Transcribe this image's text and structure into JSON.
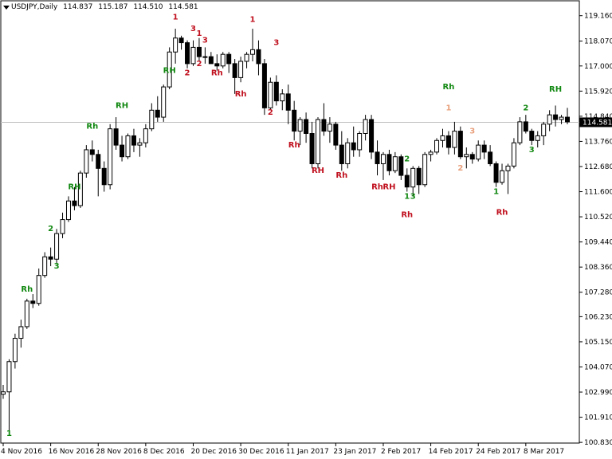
{
  "chart_data": {
    "type": "candlestick",
    "title": "USDJPY,Daily",
    "ohlc_header": [
      "114.837",
      "115.187",
      "114.510",
      "114.581"
    ],
    "current_price": 114.581,
    "current_price_label": "114.581",
    "ylim": [
      100.8,
      119.8
    ],
    "y_ticks": [
      "119.160",
      "118.070",
      "117.000",
      "115.920",
      "114.840",
      "113.760",
      "112.680",
      "111.600",
      "110.520",
      "109.440",
      "108.360",
      "107.280",
      "106.230",
      "105.150",
      "104.070",
      "102.990",
      "101.910",
      "100.830"
    ],
    "x_ticks": [
      {
        "i": 0,
        "label": "4 Nov 2016"
      },
      {
        "i": 8,
        "label": "16 Nov 2016"
      },
      {
        "i": 16,
        "label": "28 Nov 2016"
      },
      {
        "i": 24,
        "label": "8 Dec 2016"
      },
      {
        "i": 32,
        "label": "20 Dec 2016"
      },
      {
        "i": 40,
        "label": "30 Dec 2016"
      },
      {
        "i": 48,
        "label": "11 Jan 2017"
      },
      {
        "i": 56,
        "label": "23 Jan 2017"
      },
      {
        "i": 64,
        "label": "2 Feb 2017"
      },
      {
        "i": 72,
        "label": "14 Feb 2017"
      },
      {
        "i": 80,
        "label": "24 Feb 2017"
      },
      {
        "i": 88,
        "label": "8 Mar 2017"
      }
    ],
    "colors": {
      "green": "#118811",
      "red": "#c0101e",
      "tan": "#e8a07c",
      "text": "#000000",
      "priceline": "#c0c0c0"
    },
    "candles": [
      [
        102.9,
        103.3,
        102.7,
        103.0
      ],
      [
        103.0,
        104.4,
        101.2,
        104.3
      ],
      [
        104.3,
        105.5,
        104.0,
        105.3
      ],
      [
        105.3,
        106.1,
        104.9,
        105.8
      ],
      [
        105.8,
        107.0,
        105.7,
        106.9
      ],
      [
        106.9,
        107.2,
        106.6,
        106.8
      ],
      [
        106.8,
        108.3,
        106.7,
        108.0
      ],
      [
        108.0,
        109.0,
        107.9,
        108.8
      ],
      [
        108.8,
        109.2,
        108.4,
        108.7
      ],
      [
        108.7,
        110.0,
        108.5,
        109.8
      ],
      [
        109.8,
        110.7,
        109.6,
        110.4
      ],
      [
        110.4,
        111.4,
        110.3,
        111.2
      ],
      [
        111.2,
        111.8,
        110.8,
        111.0
      ],
      [
        111.0,
        112.5,
        110.9,
        112.4
      ],
      [
        112.4,
        113.6,
        112.2,
        113.4
      ],
      [
        113.4,
        113.8,
        112.9,
        113.2
      ],
      [
        113.2,
        113.4,
        111.4,
        112.6
      ],
      [
        112.6,
        112.9,
        111.6,
        111.9
      ],
      [
        111.9,
        114.5,
        111.7,
        114.3
      ],
      [
        114.3,
        114.8,
        113.4,
        113.6
      ],
      [
        113.6,
        114.0,
        112.9,
        113.1
      ],
      [
        113.1,
        114.1,
        113.0,
        114.0
      ],
      [
        114.0,
        114.3,
        113.3,
        113.6
      ],
      [
        113.6,
        113.9,
        113.1,
        113.7
      ],
      [
        113.7,
        114.5,
        113.5,
        114.3
      ],
      [
        114.3,
        115.4,
        114.2,
        115.1
      ],
      [
        115.1,
        115.7,
        114.6,
        114.8
      ],
      [
        114.8,
        116.2,
        114.6,
        116.1
      ],
      [
        116.1,
        117.8,
        116.0,
        117.6
      ],
      [
        117.6,
        118.6,
        117.1,
        118.2
      ],
      [
        118.2,
        118.3,
        117.7,
        118.0
      ],
      [
        118.0,
        118.1,
        116.9,
        117.1
      ],
      [
        117.1,
        118.1,
        117.0,
        117.8
      ],
      [
        117.8,
        118.2,
        117.2,
        117.4
      ],
      [
        117.4,
        117.8,
        117.1,
        117.4
      ],
      [
        117.4,
        117.6,
        117.1,
        117.1
      ],
      [
        117.1,
        117.5,
        116.8,
        117.0
      ],
      [
        117.0,
        117.6,
        116.9,
        117.5
      ],
      [
        117.5,
        117.6,
        116.7,
        117.1
      ],
      [
        117.1,
        117.3,
        115.8,
        116.5
      ],
      [
        116.5,
        117.4,
        116.3,
        117.2
      ],
      [
        117.2,
        117.6,
        116.9,
        117.5
      ],
      [
        117.5,
        118.6,
        117.2,
        117.7
      ],
      [
        117.7,
        118.1,
        116.6,
        117.1
      ],
      [
        117.1,
        117.3,
        114.9,
        115.2
      ],
      [
        115.2,
        116.5,
        115.1,
        116.3
      ],
      [
        116.3,
        116.6,
        115.3,
        115.5
      ],
      [
        115.5,
        116.0,
        115.1,
        115.8
      ],
      [
        115.8,
        116.2,
        114.5,
        115.1
      ],
      [
        115.1,
        115.5,
        113.8,
        114.2
      ],
      [
        114.2,
        114.8,
        113.6,
        114.7
      ],
      [
        114.7,
        115.0,
        113.7,
        114.1
      ],
      [
        114.1,
        114.6,
        112.6,
        112.8
      ],
      [
        112.8,
        114.8,
        112.6,
        114.7
      ],
      [
        114.7,
        115.4,
        114.0,
        114.2
      ],
      [
        114.2,
        114.8,
        113.7,
        114.5
      ],
      [
        114.5,
        114.6,
        113.4,
        113.6
      ],
      [
        113.6,
        114.2,
        112.5,
        112.8
      ],
      [
        112.8,
        113.9,
        112.6,
        113.7
      ],
      [
        113.7,
        114.4,
        113.1,
        113.4
      ],
      [
        113.4,
        114.2,
        113.1,
        114.1
      ],
      [
        114.1,
        114.9,
        113.8,
        114.7
      ],
      [
        114.7,
        114.9,
        113.0,
        113.3
      ],
      [
        113.3,
        113.8,
        112.3,
        112.8
      ],
      [
        112.8,
        113.3,
        112.1,
        113.2
      ],
      [
        113.2,
        113.4,
        112.3,
        112.5
      ],
      [
        112.5,
        113.3,
        112.4,
        113.1
      ],
      [
        113.1,
        113.2,
        112.1,
        112.3
      ],
      [
        112.3,
        112.6,
        111.6,
        111.8
      ],
      [
        111.8,
        112.7,
        111.4,
        112.6
      ],
      [
        112.6,
        112.7,
        111.5,
        111.9
      ],
      [
        111.9,
        113.3,
        111.8,
        113.2
      ],
      [
        113.2,
        113.4,
        112.9,
        113.3
      ],
      [
        113.3,
        113.9,
        113.2,
        113.8
      ],
      [
        113.8,
        114.3,
        113.5,
        114.0
      ],
      [
        114.0,
        114.2,
        113.2,
        113.5
      ],
      [
        113.5,
        114.6,
        113.2,
        114.2
      ],
      [
        114.2,
        114.4,
        113.0,
        113.1
      ],
      [
        113.1,
        113.5,
        112.6,
        113.2
      ],
      [
        113.2,
        113.3,
        112.8,
        113.0
      ],
      [
        113.0,
        113.8,
        112.9,
        113.6
      ],
      [
        113.6,
        113.8,
        113.0,
        113.3
      ],
      [
        113.3,
        113.6,
        112.7,
        112.8
      ],
      [
        112.8,
        112.9,
        111.8,
        112.0
      ],
      [
        112.0,
        112.8,
        111.9,
        112.5
      ],
      [
        112.5,
        112.8,
        111.5,
        112.7
      ],
      [
        112.7,
        113.9,
        112.6,
        113.7
      ],
      [
        113.7,
        114.8,
        113.6,
        114.6
      ],
      [
        114.6,
        114.9,
        114.1,
        114.2
      ],
      [
        114.2,
        114.3,
        113.6,
        113.8
      ],
      [
        113.8,
        114.2,
        113.5,
        114.0
      ],
      [
        114.0,
        114.6,
        113.6,
        114.5
      ],
      [
        114.5,
        115.1,
        114.2,
        114.9
      ],
      [
        114.9,
        115.3,
        114.4,
        114.7
      ],
      [
        114.7,
        114.9,
        114.5,
        114.8
      ],
      [
        114.8,
        115.2,
        114.5,
        114.6
      ]
    ],
    "annotations": [
      {
        "i": 1,
        "y": 101.1,
        "text": "1",
        "color": "green",
        "pos": "below"
      },
      {
        "i": 4,
        "y": 107.3,
        "text": "Rh",
        "color": "green",
        "pos": "above"
      },
      {
        "i": 8,
        "y": 109.9,
        "text": "2",
        "color": "green",
        "pos": "above"
      },
      {
        "i": 9,
        "y": 108.3,
        "text": "3",
        "color": "green",
        "pos": "below"
      },
      {
        "i": 12,
        "y": 111.7,
        "text": "RH",
        "color": "green",
        "pos": "above"
      },
      {
        "i": 15,
        "y": 114.3,
        "text": "Rh",
        "color": "green",
        "pos": "above"
      },
      {
        "i": 20,
        "y": 115.2,
        "text": "RH",
        "color": "green",
        "pos": "above"
      },
      {
        "i": 28,
        "y": 116.7,
        "text": "RH",
        "color": "green",
        "pos": "above"
      },
      {
        "i": 29,
        "y": 119.0,
        "text": "1",
        "color": "red",
        "pos": "above"
      },
      {
        "i": 31,
        "y": 116.6,
        "text": "2",
        "color": "red",
        "pos": "below"
      },
      {
        "i": 32,
        "y": 118.5,
        "text": "3",
        "color": "red",
        "pos": "above"
      },
      {
        "i": 33,
        "y": 118.3,
        "text": "1",
        "color": "red",
        "pos": "above"
      },
      {
        "i": 34,
        "y": 118.0,
        "text": "3",
        "color": "red",
        "pos": "above"
      },
      {
        "i": 33,
        "y": 117.0,
        "text": "2",
        "color": "red",
        "pos": "below"
      },
      {
        "i": 36,
        "y": 116.6,
        "text": "Rh",
        "color": "red",
        "pos": "below"
      },
      {
        "i": 40,
        "y": 115.7,
        "text": "Rh",
        "color": "red",
        "pos": "below"
      },
      {
        "i": 42,
        "y": 118.9,
        "text": "1",
        "color": "red",
        "pos": "above"
      },
      {
        "i": 46,
        "y": 117.9,
        "text": "3",
        "color": "red",
        "pos": "above"
      },
      {
        "i": 45,
        "y": 114.9,
        "text": "2",
        "color": "red",
        "pos": "below"
      },
      {
        "i": 49,
        "y": 113.5,
        "text": "Rh",
        "color": "red",
        "pos": "below"
      },
      {
        "i": 53,
        "y": 112.4,
        "text": "RH",
        "color": "red",
        "pos": "below"
      },
      {
        "i": 57,
        "y": 112.2,
        "text": "Rh",
        "color": "red",
        "pos": "below"
      },
      {
        "i": 63,
        "y": 111.7,
        "text": "Rh",
        "color": "red",
        "pos": "below"
      },
      {
        "i": 65,
        "y": 111.7,
        "text": "RH",
        "color": "red",
        "pos": "below"
      },
      {
        "i": 68,
        "y": 112.9,
        "text": "2",
        "color": "green",
        "pos": "above"
      },
      {
        "i": 68,
        "y": 111.3,
        "text": "1",
        "color": "green",
        "pos": "below"
      },
      {
        "i": 69,
        "y": 111.3,
        "text": "3",
        "color": "green",
        "pos": "below"
      },
      {
        "i": 68,
        "y": 110.5,
        "text": "Rh",
        "color": "red",
        "pos": "below"
      },
      {
        "i": 75,
        "y": 116.0,
        "text": "Rh",
        "color": "green",
        "pos": "above"
      },
      {
        "i": 75,
        "y": 115.1,
        "text": "1",
        "color": "tan",
        "pos": "above"
      },
      {
        "i": 79,
        "y": 114.1,
        "text": "3",
        "color": "tan",
        "pos": "above"
      },
      {
        "i": 77,
        "y": 112.5,
        "text": "2",
        "color": "tan",
        "pos": "below"
      },
      {
        "i": 83,
        "y": 111.5,
        "text": "1",
        "color": "green",
        "pos": "below"
      },
      {
        "i": 84,
        "y": 110.6,
        "text": "Rh",
        "color": "red",
        "pos": "below"
      },
      {
        "i": 88,
        "y": 115.1,
        "text": "2",
        "color": "green",
        "pos": "above"
      },
      {
        "i": 89,
        "y": 113.3,
        "text": "3",
        "color": "green",
        "pos": "below"
      },
      {
        "i": 93,
        "y": 115.9,
        "text": "RH",
        "color": "green",
        "pos": "above"
      }
    ]
  }
}
